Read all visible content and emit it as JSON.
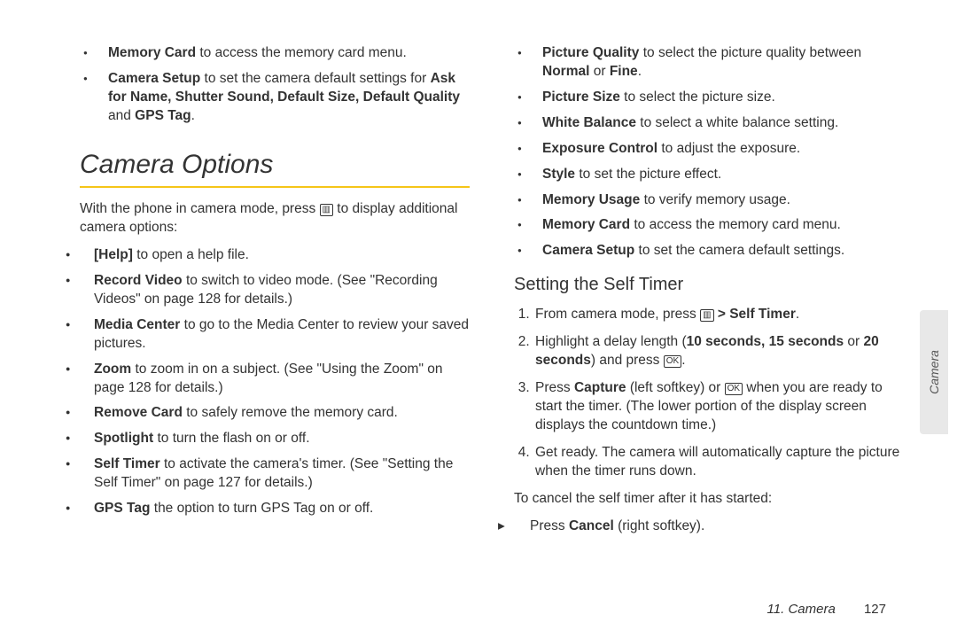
{
  "colors": {
    "accent": "#f5c518",
    "text": "#333333",
    "tab_bg": "#e8e8e8"
  },
  "left": {
    "top_bullets": [
      {
        "bold": "Memory Card",
        "rest": " to access the memory card menu."
      },
      {
        "bold": "Camera Setup",
        "rest": " to set the camera default settings for ",
        "tail_bold": "Ask for Name, Shutter Sound, Default Size, Default Quality",
        "tail_mid": " and ",
        "tail_bold2": "GPS Tag",
        "tail_end": "."
      }
    ],
    "section_title": "Camera Options",
    "intro_pre": "With the phone in camera mode, press ",
    "intro_icon": "menu-icon",
    "intro_post": " to display additional camera options:",
    "bullets": [
      {
        "bold": "[Help]",
        "rest": " to open a help file."
      },
      {
        "bold": "Record Video",
        "rest": " to switch to video mode. (See \"Recording Videos\" on page 128 for details.)"
      },
      {
        "bold": "Media Center",
        "rest": " to go to the Media Center to review your saved pictures."
      },
      {
        "bold": "Zoom",
        "rest": " to zoom in on a subject. (See \"Using the Zoom\" on page 128 for details.)"
      },
      {
        "bold": "Remove Card",
        "rest": " to safely remove the memory card."
      },
      {
        "bold": "Spotlight",
        "rest": " to turn the flash on or off."
      },
      {
        "bold": "Self Timer",
        "rest": " to activate the camera's timer. (See \"Setting the Self Timer\" on page 127 for details.)"
      },
      {
        "bold": "GPS Tag",
        "rest": " the option to turn GPS Tag on or off."
      }
    ]
  },
  "right": {
    "bullets": [
      {
        "bold": "Picture Quality",
        "rest": " to select the picture quality between ",
        "tail_bold": "Normal",
        "tail_mid": " or ",
        "tail_bold2": "Fine",
        "tail_end": "."
      },
      {
        "bold": "Picture Size",
        "rest": " to select the picture size."
      },
      {
        "bold": "White Balance",
        "rest": " to select a white balance setting."
      },
      {
        "bold": "Exposure Control",
        "rest": " to adjust the exposure."
      },
      {
        "bold": "Style",
        "rest": " to set the picture effect."
      },
      {
        "bold": "Memory Usage",
        "rest": " to verify memory usage."
      },
      {
        "bold": "Memory Card",
        "rest": " to access the memory card menu."
      },
      {
        "bold": "Camera Setup",
        "rest": " to set the camera default settings."
      }
    ],
    "subhead": "Setting the Self Timer",
    "steps": {
      "s1_pre": "From camera mode, press ",
      "s1_icon": "menu-icon",
      "s1_mid": " > ",
      "s1_bold": "Self Timer",
      "s1_end": ".",
      "s2_pre": "Highlight a delay length (",
      "s2_bold": "10 seconds, 15 seconds",
      "s2_mid": " or ",
      "s2_bold2": "20 seconds",
      "s2_mid2": ") and press ",
      "s2_icon": "ok-icon",
      "s2_end": ".",
      "s3_pre": "Press ",
      "s3_bold": "Capture",
      "s3_mid": " (left softkey) or ",
      "s3_icon": "ok-icon",
      "s3_post": " when you are ready to start the timer. (The lower portion of the display screen displays the countdown time.)",
      "s4": "Get ready. The camera will automatically capture the picture when the timer runs down."
    },
    "cancel_intro": "To cancel the self timer after it has started:",
    "cancel_pre": "Press ",
    "cancel_bold": "Cancel",
    "cancel_post": " (right softkey)."
  },
  "footer": {
    "chapter": "11. Camera",
    "page": "127"
  },
  "side_tab": "Camera",
  "icons": {
    "menu": "▥",
    "ok": "OK"
  }
}
